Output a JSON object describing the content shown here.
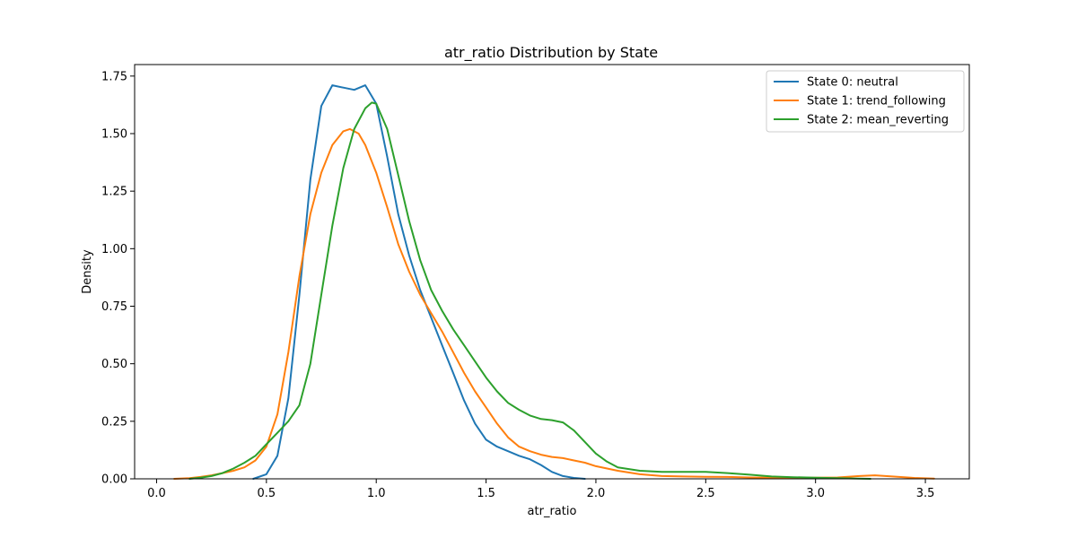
{
  "chart_data": {
    "type": "line",
    "title": "atr_ratio Distribution by State",
    "xlabel": "atr_ratio",
    "ylabel": "Density",
    "xlim": [
      -0.1,
      3.7
    ],
    "ylim": [
      0,
      1.8
    ],
    "xticks": [
      0.0,
      0.5,
      1.0,
      1.5,
      2.0,
      2.5,
      3.0,
      3.5
    ],
    "xtick_labels": [
      "0.0",
      "0.5",
      "1.0",
      "1.5",
      "2.0",
      "2.5",
      "3.0",
      "3.5"
    ],
    "yticks": [
      0.0,
      0.25,
      0.5,
      0.75,
      1.0,
      1.25,
      1.5,
      1.75
    ],
    "ytick_labels": [
      "0.00",
      "0.25",
      "0.50",
      "0.75",
      "1.00",
      "1.25",
      "1.50",
      "1.75"
    ],
    "grid": false,
    "legend_position": "top-right",
    "series": [
      {
        "name": "State 0: neutral",
        "color": "#1f77b4",
        "points": [
          [
            0.44,
            0.0
          ],
          [
            0.5,
            0.02
          ],
          [
            0.55,
            0.1
          ],
          [
            0.6,
            0.35
          ],
          [
            0.65,
            0.8
          ],
          [
            0.7,
            1.3
          ],
          [
            0.75,
            1.62
          ],
          [
            0.8,
            1.71
          ],
          [
            0.85,
            1.7
          ],
          [
            0.9,
            1.69
          ],
          [
            0.95,
            1.71
          ],
          [
            1.0,
            1.63
          ],
          [
            1.05,
            1.4
          ],
          [
            1.1,
            1.15
          ],
          [
            1.15,
            0.97
          ],
          [
            1.2,
            0.82
          ],
          [
            1.25,
            0.7
          ],
          [
            1.3,
            0.58
          ],
          [
            1.35,
            0.46
          ],
          [
            1.4,
            0.34
          ],
          [
            1.45,
            0.24
          ],
          [
            1.5,
            0.17
          ],
          [
            1.55,
            0.14
          ],
          [
            1.6,
            0.12
          ],
          [
            1.65,
            0.1
          ],
          [
            1.7,
            0.085
          ],
          [
            1.75,
            0.06
          ],
          [
            1.8,
            0.03
          ],
          [
            1.85,
            0.012
          ],
          [
            1.9,
            0.004
          ],
          [
            1.95,
            0.0
          ]
        ]
      },
      {
        "name": "State 1: trend_following",
        "color": "#ff7f0e",
        "points": [
          [
            0.08,
            0.0
          ],
          [
            0.15,
            0.003
          ],
          [
            0.2,
            0.008
          ],
          [
            0.25,
            0.015
          ],
          [
            0.3,
            0.025
          ],
          [
            0.35,
            0.035
          ],
          [
            0.4,
            0.05
          ],
          [
            0.45,
            0.08
          ],
          [
            0.5,
            0.14
          ],
          [
            0.55,
            0.28
          ],
          [
            0.6,
            0.55
          ],
          [
            0.65,
            0.88
          ],
          [
            0.7,
            1.15
          ],
          [
            0.75,
            1.33
          ],
          [
            0.8,
            1.45
          ],
          [
            0.85,
            1.51
          ],
          [
            0.88,
            1.52
          ],
          [
            0.92,
            1.5
          ],
          [
            0.95,
            1.45
          ],
          [
            1.0,
            1.33
          ],
          [
            1.05,
            1.18
          ],
          [
            1.1,
            1.02
          ],
          [
            1.15,
            0.9
          ],
          [
            1.2,
            0.8
          ],
          [
            1.25,
            0.72
          ],
          [
            1.3,
            0.64
          ],
          [
            1.35,
            0.55
          ],
          [
            1.4,
            0.46
          ],
          [
            1.45,
            0.38
          ],
          [
            1.5,
            0.31
          ],
          [
            1.55,
            0.24
          ],
          [
            1.6,
            0.18
          ],
          [
            1.65,
            0.14
          ],
          [
            1.7,
            0.12
          ],
          [
            1.75,
            0.105
          ],
          [
            1.8,
            0.095
          ],
          [
            1.85,
            0.09
          ],
          [
            1.9,
            0.08
          ],
          [
            1.95,
            0.07
          ],
          [
            2.0,
            0.055
          ],
          [
            2.1,
            0.035
          ],
          [
            2.2,
            0.02
          ],
          [
            2.3,
            0.012
          ],
          [
            2.4,
            0.01
          ],
          [
            2.5,
            0.009
          ],
          [
            2.6,
            0.008
          ],
          [
            2.7,
            0.006
          ],
          [
            2.8,
            0.005
          ],
          [
            2.9,
            0.005
          ],
          [
            3.0,
            0.005
          ],
          [
            3.1,
            0.006
          ],
          [
            3.2,
            0.012
          ],
          [
            3.27,
            0.015
          ],
          [
            3.35,
            0.01
          ],
          [
            3.45,
            0.004
          ],
          [
            3.54,
            0.001
          ]
        ]
      },
      {
        "name": "State 2: mean_reverting",
        "color": "#2ca02c",
        "points": [
          [
            0.15,
            0.0
          ],
          [
            0.2,
            0.005
          ],
          [
            0.25,
            0.012
          ],
          [
            0.3,
            0.025
          ],
          [
            0.35,
            0.045
          ],
          [
            0.4,
            0.07
          ],
          [
            0.45,
            0.1
          ],
          [
            0.5,
            0.15
          ],
          [
            0.55,
            0.2
          ],
          [
            0.6,
            0.25
          ],
          [
            0.65,
            0.32
          ],
          [
            0.7,
            0.5
          ],
          [
            0.75,
            0.8
          ],
          [
            0.8,
            1.1
          ],
          [
            0.85,
            1.35
          ],
          [
            0.9,
            1.52
          ],
          [
            0.95,
            1.61
          ],
          [
            0.98,
            1.635
          ],
          [
            1.0,
            1.63
          ],
          [
            1.05,
            1.52
          ],
          [
            1.1,
            1.32
          ],
          [
            1.15,
            1.12
          ],
          [
            1.2,
            0.95
          ],
          [
            1.25,
            0.82
          ],
          [
            1.3,
            0.73
          ],
          [
            1.35,
            0.65
          ],
          [
            1.4,
            0.58
          ],
          [
            1.45,
            0.51
          ],
          [
            1.5,
            0.44
          ],
          [
            1.55,
            0.38
          ],
          [
            1.6,
            0.33
          ],
          [
            1.65,
            0.3
          ],
          [
            1.7,
            0.275
          ],
          [
            1.75,
            0.26
          ],
          [
            1.8,
            0.255
          ],
          [
            1.85,
            0.245
          ],
          [
            1.9,
            0.21
          ],
          [
            1.95,
            0.16
          ],
          [
            2.0,
            0.11
          ],
          [
            2.05,
            0.075
          ],
          [
            2.1,
            0.05
          ],
          [
            2.2,
            0.035
          ],
          [
            2.3,
            0.03
          ],
          [
            2.4,
            0.03
          ],
          [
            2.5,
            0.03
          ],
          [
            2.6,
            0.025
          ],
          [
            2.7,
            0.018
          ],
          [
            2.8,
            0.01
          ],
          [
            2.9,
            0.007
          ],
          [
            3.0,
            0.005
          ],
          [
            3.1,
            0.003
          ],
          [
            3.2,
            0.001
          ],
          [
            3.25,
            0.0
          ]
        ]
      }
    ]
  }
}
